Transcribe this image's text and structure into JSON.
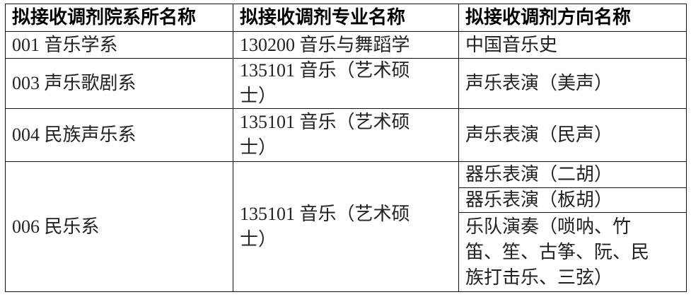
{
  "header": {
    "col1": "拟接收调剂院系所名称",
    "col2": "拟接收调剂专业名称",
    "col3": "拟接收调剂方向名称"
  },
  "rows": [
    {
      "dept": "001 音乐学系",
      "major": [
        "130200 音乐与舞蹈学"
      ],
      "directions": [
        [
          "中国音乐史"
        ]
      ]
    },
    {
      "dept": "003 声乐歌剧系",
      "major": [
        "135101 音乐（艺术硕",
        "士）"
      ],
      "directions": [
        [
          "声乐表演（美声）"
        ]
      ]
    },
    {
      "dept": "004 民族声乐系",
      "major": [
        "135101 音乐（艺术硕",
        "士）"
      ],
      "directions": [
        [
          "声乐表演（民声）"
        ]
      ]
    },
    {
      "dept": "006 民乐系",
      "major": [
        "135101 音乐（艺术硕",
        "士）"
      ],
      "directions": [
        [
          "器乐表演（二胡）"
        ],
        [
          "器乐表演（板胡）"
        ],
        [
          "乐队演奏（唢呐、竹",
          "笛、笙、古筝、阮、民",
          "族打击乐、三弦）"
        ]
      ]
    }
  ]
}
